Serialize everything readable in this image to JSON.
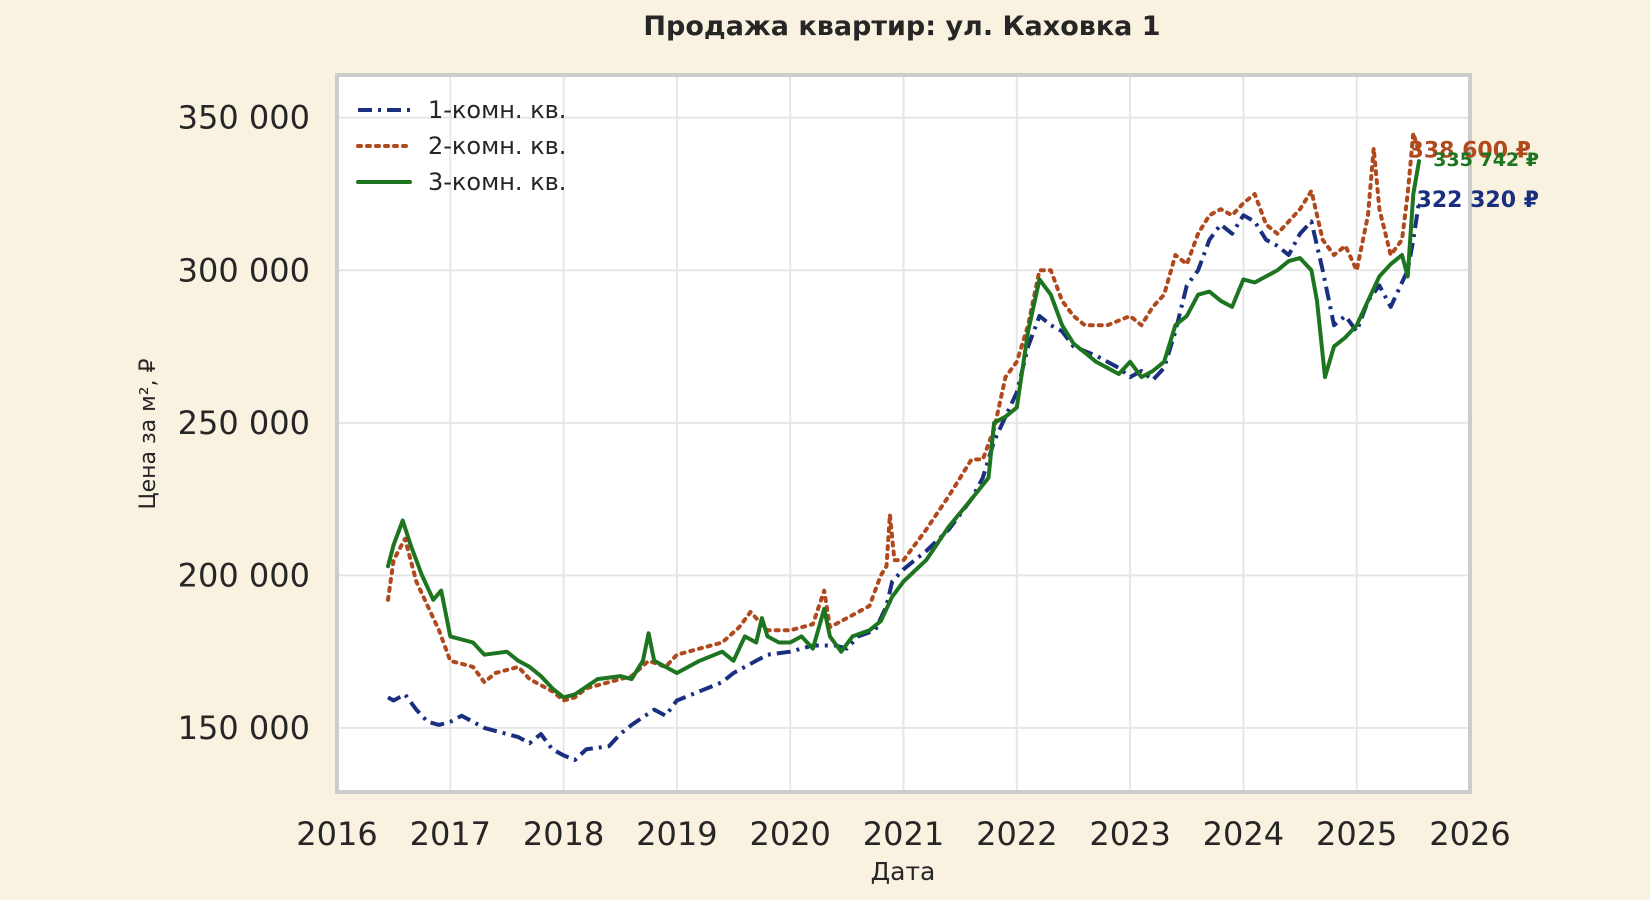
{
  "chart_data": {
    "type": "line",
    "title": "Продажа квартир: ул. Каховка 1",
    "xlabel": "Дата",
    "ylabel": "Цена за м², ₽",
    "xlim": [
      2016,
      2026
    ],
    "ylim": [
      129000,
      364000
    ],
    "x_ticks": [
      "2016",
      "2017",
      "2018",
      "2019",
      "2020",
      "2021",
      "2022",
      "2023",
      "2024",
      "2025",
      "2026"
    ],
    "y_ticks": [
      "150 000",
      "200 000",
      "250 000",
      "300 000",
      "350 000"
    ],
    "y_tick_values": [
      150000,
      200000,
      250000,
      300000,
      350000
    ],
    "grid": true,
    "legend_position": "top-left",
    "series": [
      {
        "name": "1-комн. кв.",
        "color": "#1a2f80",
        "style": "dashdot",
        "end_label": "322 320 ₽",
        "points": [
          [
            2016.45,
            160000
          ],
          [
            2016.5,
            159000
          ],
          [
            2016.6,
            161000
          ],
          [
            2016.7,
            156000
          ],
          [
            2016.8,
            152000
          ],
          [
            2016.9,
            151000
          ],
          [
            2017.0,
            152000
          ],
          [
            2017.1,
            154000
          ],
          [
            2017.3,
            150000
          ],
          [
            2017.5,
            148000
          ],
          [
            2017.6,
            147000
          ],
          [
            2017.7,
            145000
          ],
          [
            2017.8,
            148000
          ],
          [
            2017.9,
            143000
          ],
          [
            2018.0,
            141000
          ],
          [
            2018.1,
            139500
          ],
          [
            2018.2,
            143000
          ],
          [
            2018.4,
            144000
          ],
          [
            2018.5,
            148000
          ],
          [
            2018.6,
            151000
          ],
          [
            2018.8,
            156000
          ],
          [
            2018.9,
            154000
          ],
          [
            2019.0,
            159000
          ],
          [
            2019.2,
            162000
          ],
          [
            2019.4,
            165000
          ],
          [
            2019.5,
            168000
          ],
          [
            2019.7,
            172000
          ],
          [
            2019.8,
            174000
          ],
          [
            2020.0,
            175000
          ],
          [
            2020.2,
            177000
          ],
          [
            2020.4,
            177000
          ],
          [
            2020.5,
            176000
          ],
          [
            2020.6,
            180000
          ],
          [
            2020.75,
            182000
          ],
          [
            2020.85,
            190000
          ],
          [
            2020.9,
            198000
          ],
          [
            2021.0,
            202000
          ],
          [
            2021.2,
            208000
          ],
          [
            2021.4,
            215000
          ],
          [
            2021.6,
            225000
          ],
          [
            2021.7,
            232000
          ],
          [
            2021.8,
            244000
          ],
          [
            2021.9,
            252000
          ],
          [
            2022.0,
            260000
          ],
          [
            2022.1,
            275000
          ],
          [
            2022.2,
            285000
          ],
          [
            2022.3,
            282000
          ],
          [
            2022.4,
            280000
          ],
          [
            2022.5,
            275000
          ],
          [
            2022.7,
            272000
          ],
          [
            2022.8,
            270000
          ],
          [
            2022.9,
            268000
          ],
          [
            2023.0,
            265000
          ],
          [
            2023.1,
            267000
          ],
          [
            2023.2,
            264000
          ],
          [
            2023.3,
            268000
          ],
          [
            2023.4,
            280000
          ],
          [
            2023.5,
            295000
          ],
          [
            2023.6,
            300000
          ],
          [
            2023.7,
            310000
          ],
          [
            2023.8,
            315000
          ],
          [
            2023.9,
            312000
          ],
          [
            2024.0,
            318000
          ],
          [
            2024.1,
            316000
          ],
          [
            2024.2,
            310000
          ],
          [
            2024.3,
            308000
          ],
          [
            2024.4,
            305000
          ],
          [
            2024.5,
            312000
          ],
          [
            2024.6,
            316000
          ],
          [
            2024.7,
            300000
          ],
          [
            2024.8,
            282000
          ],
          [
            2024.9,
            285000
          ],
          [
            2025.0,
            280000
          ],
          [
            2025.1,
            290000
          ],
          [
            2025.2,
            295000
          ],
          [
            2025.3,
            288000
          ],
          [
            2025.4,
            296000
          ],
          [
            2025.45,
            300000
          ],
          [
            2025.5,
            310000
          ],
          [
            2025.55,
            322320
          ]
        ]
      },
      {
        "name": "2-комн. кв.",
        "color": "#b04a1e",
        "style": "dotted",
        "end_label": "338 600 ₽",
        "points": [
          [
            2016.45,
            192000
          ],
          [
            2016.5,
            205000
          ],
          [
            2016.6,
            212000
          ],
          [
            2016.7,
            198000
          ],
          [
            2016.8,
            190000
          ],
          [
            2016.9,
            182000
          ],
          [
            2017.0,
            172000
          ],
          [
            2017.2,
            170000
          ],
          [
            2017.3,
            165000
          ],
          [
            2017.4,
            168000
          ],
          [
            2017.6,
            170000
          ],
          [
            2017.7,
            166000
          ],
          [
            2017.8,
            164000
          ],
          [
            2017.9,
            162000
          ],
          [
            2018.0,
            159000
          ],
          [
            2018.1,
            160000
          ],
          [
            2018.2,
            163000
          ],
          [
            2018.4,
            165000
          ],
          [
            2018.6,
            167000
          ],
          [
            2018.75,
            172000
          ],
          [
            2018.9,
            170000
          ],
          [
            2019.0,
            174000
          ],
          [
            2019.2,
            176000
          ],
          [
            2019.4,
            178000
          ],
          [
            2019.55,
            183000
          ],
          [
            2019.65,
            188000
          ],
          [
            2019.8,
            182000
          ],
          [
            2020.0,
            182000
          ],
          [
            2020.2,
            184000
          ],
          [
            2020.3,
            195000
          ],
          [
            2020.35,
            183000
          ],
          [
            2020.5,
            186000
          ],
          [
            2020.7,
            190000
          ],
          [
            2020.8,
            200000
          ],
          [
            2020.85,
            203000
          ],
          [
            2020.88,
            220000
          ],
          [
            2020.92,
            205000
          ],
          [
            2021.0,
            205000
          ],
          [
            2021.2,
            215000
          ],
          [
            2021.4,
            226000
          ],
          [
            2021.5,
            232000
          ],
          [
            2021.6,
            238000
          ],
          [
            2021.7,
            238000
          ],
          [
            2021.8,
            248000
          ],
          [
            2021.9,
            265000
          ],
          [
            2022.0,
            270000
          ],
          [
            2022.1,
            282000
          ],
          [
            2022.2,
            300000
          ],
          [
            2022.3,
            300000
          ],
          [
            2022.4,
            290000
          ],
          [
            2022.5,
            285000
          ],
          [
            2022.6,
            282000
          ],
          [
            2022.8,
            282000
          ],
          [
            2023.0,
            285000
          ],
          [
            2023.1,
            282000
          ],
          [
            2023.2,
            288000
          ],
          [
            2023.3,
            292000
          ],
          [
            2023.4,
            305000
          ],
          [
            2023.5,
            302000
          ],
          [
            2023.6,
            312000
          ],
          [
            2023.7,
            318000
          ],
          [
            2023.8,
            320000
          ],
          [
            2023.9,
            318000
          ],
          [
            2024.0,
            322000
          ],
          [
            2024.1,
            325000
          ],
          [
            2024.2,
            315000
          ],
          [
            2024.3,
            312000
          ],
          [
            2024.4,
            316000
          ],
          [
            2024.5,
            320000
          ],
          [
            2024.6,
            326000
          ],
          [
            2024.7,
            310000
          ],
          [
            2024.8,
            305000
          ],
          [
            2024.9,
            308000
          ],
          [
            2025.0,
            300000
          ],
          [
            2025.1,
            318000
          ],
          [
            2025.15,
            340000
          ],
          [
            2025.2,
            320000
          ],
          [
            2025.3,
            305000
          ],
          [
            2025.4,
            310000
          ],
          [
            2025.45,
            325000
          ],
          [
            2025.5,
            345000
          ],
          [
            2025.55,
            338600
          ]
        ]
      },
      {
        "name": "3-комн. кв.",
        "color": "#1d7520",
        "style": "solid",
        "end_label": "335 742 ₽",
        "points": [
          [
            2016.45,
            203000
          ],
          [
            2016.5,
            210000
          ],
          [
            2016.58,
            218000
          ],
          [
            2016.65,
            210000
          ],
          [
            2016.75,
            200000
          ],
          [
            2016.85,
            192000
          ],
          [
            2016.92,
            195000
          ],
          [
            2017.0,
            180000
          ],
          [
            2017.2,
            178000
          ],
          [
            2017.3,
            174000
          ],
          [
            2017.5,
            175000
          ],
          [
            2017.6,
            172000
          ],
          [
            2017.7,
            170000
          ],
          [
            2017.8,
            167000
          ],
          [
            2017.9,
            163000
          ],
          [
            2018.0,
            160000
          ],
          [
            2018.1,
            161000
          ],
          [
            2018.3,
            166000
          ],
          [
            2018.5,
            167000
          ],
          [
            2018.6,
            166000
          ],
          [
            2018.7,
            172000
          ],
          [
            2018.75,
            181000
          ],
          [
            2018.8,
            172000
          ],
          [
            2018.9,
            170000
          ],
          [
            2019.0,
            168000
          ],
          [
            2019.2,
            172000
          ],
          [
            2019.4,
            175000
          ],
          [
            2019.5,
            172000
          ],
          [
            2019.6,
            180000
          ],
          [
            2019.7,
            178000
          ],
          [
            2019.75,
            186000
          ],
          [
            2019.8,
            180000
          ],
          [
            2019.9,
            178000
          ],
          [
            2020.0,
            178000
          ],
          [
            2020.1,
            180000
          ],
          [
            2020.2,
            176000
          ],
          [
            2020.3,
            189000
          ],
          [
            2020.35,
            180000
          ],
          [
            2020.45,
            175000
          ],
          [
            2020.55,
            180000
          ],
          [
            2020.7,
            182000
          ],
          [
            2020.8,
            185000
          ],
          [
            2020.9,
            193000
          ],
          [
            2021.0,
            198000
          ],
          [
            2021.2,
            205000
          ],
          [
            2021.4,
            216000
          ],
          [
            2021.6,
            225000
          ],
          [
            2021.75,
            232000
          ],
          [
            2021.8,
            250000
          ],
          [
            2021.9,
            252000
          ],
          [
            2022.0,
            255000
          ],
          [
            2022.1,
            280000
          ],
          [
            2022.2,
            297000
          ],
          [
            2022.3,
            292000
          ],
          [
            2022.4,
            282000
          ],
          [
            2022.5,
            276000
          ],
          [
            2022.6,
            273000
          ],
          [
            2022.7,
            270000
          ],
          [
            2022.8,
            268000
          ],
          [
            2022.9,
            266000
          ],
          [
            2023.0,
            270000
          ],
          [
            2023.1,
            265000
          ],
          [
            2023.2,
            267000
          ],
          [
            2023.3,
            270000
          ],
          [
            2023.4,
            282000
          ],
          [
            2023.5,
            285000
          ],
          [
            2023.6,
            292000
          ],
          [
            2023.7,
            293000
          ],
          [
            2023.8,
            290000
          ],
          [
            2023.9,
            288000
          ],
          [
            2024.0,
            297000
          ],
          [
            2024.1,
            296000
          ],
          [
            2024.2,
            298000
          ],
          [
            2024.3,
            300000
          ],
          [
            2024.4,
            303000
          ],
          [
            2024.5,
            304000
          ],
          [
            2024.6,
            300000
          ],
          [
            2024.65,
            290000
          ],
          [
            2024.72,
            265000
          ],
          [
            2024.8,
            275000
          ],
          [
            2024.9,
            278000
          ],
          [
            2025.0,
            282000
          ],
          [
            2025.1,
            290000
          ],
          [
            2025.2,
            298000
          ],
          [
            2025.3,
            302000
          ],
          [
            2025.4,
            305000
          ],
          [
            2025.45,
            298000
          ],
          [
            2025.5,
            325000
          ],
          [
            2025.55,
            335742
          ]
        ]
      }
    ]
  }
}
